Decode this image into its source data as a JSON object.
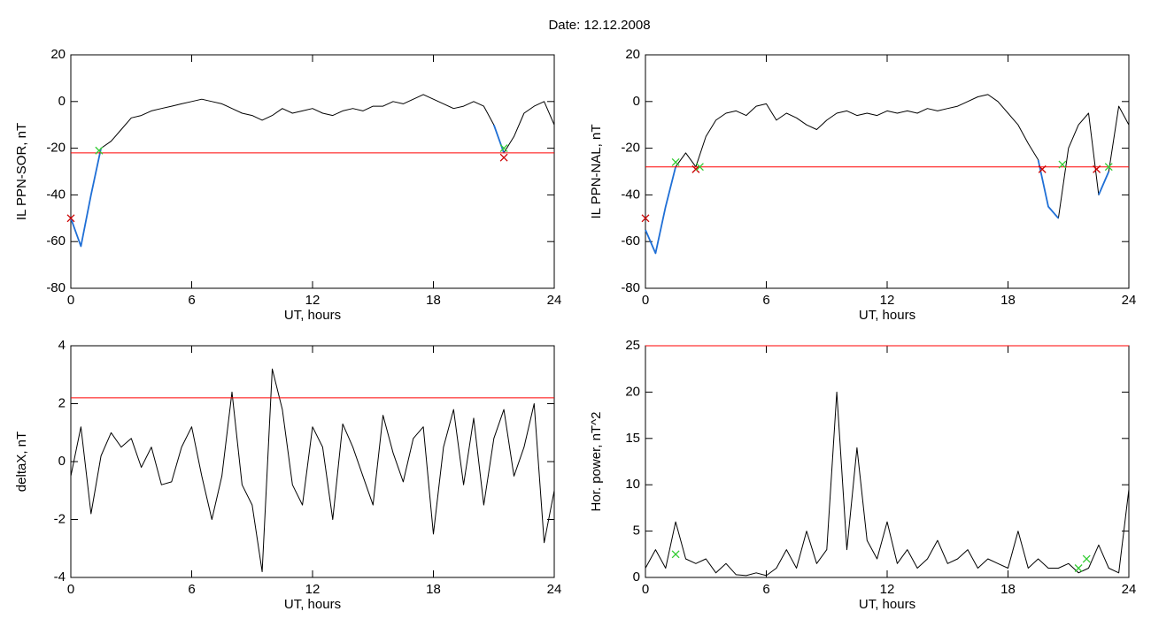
{
  "chart_data": [
    {
      "type": "line",
      "title": "Date:  12.12.2008",
      "xlabel": "UT, hours",
      "ylabel": "IL PPN-SOR, nT",
      "xlim": [
        0,
        24
      ],
      "ylim": [
        -80,
        20
      ],
      "xticks": [
        0,
        6,
        12,
        18,
        24
      ],
      "yticks": [
        -80,
        -60,
        -40,
        -20,
        0,
        20
      ],
      "x": [
        0,
        0.5,
        1,
        1.5,
        2,
        2.5,
        3,
        3.5,
        4,
        4.5,
        5,
        5.5,
        6,
        6.5,
        7,
        7.5,
        8,
        8.5,
        9,
        9.5,
        10,
        10.5,
        11,
        11.5,
        12,
        12.5,
        13,
        13.5,
        14,
        14.5,
        15,
        15.5,
        16,
        16.5,
        17,
        17.5,
        18,
        18.5,
        19,
        19.5,
        20,
        20.5,
        21,
        21.5,
        22,
        22.5,
        23,
        23.5,
        24
      ],
      "series": [
        {
          "color": "#000000",
          "values": [
            -50,
            -62,
            -40,
            -20,
            -17,
            -12,
            -7,
            -6,
            -4,
            -3,
            -2,
            -1,
            0,
            1,
            0,
            -1,
            -3,
            -5,
            -6,
            -8,
            -6,
            -3,
            -5,
            -4,
            -3,
            -5,
            -6,
            -4,
            -3,
            -4,
            -2,
            -2,
            0,
            -1,
            1,
            3,
            1,
            -1,
            -3,
            -2,
            0,
            -2,
            -10,
            -22,
            -15,
            -5,
            -2,
            0,
            -10
          ]
        },
        {
          "color": "#1f6fd6",
          "values": [
            -50,
            -62,
            -40,
            -20,
            null,
            null,
            null,
            null,
            null,
            null,
            null,
            null,
            null,
            null,
            null,
            null,
            null,
            null,
            null,
            null,
            null,
            null,
            null,
            null,
            null,
            null,
            null,
            null,
            null,
            null,
            null,
            null,
            null,
            null,
            null,
            null,
            null,
            null,
            null,
            null,
            null,
            null,
            -10,
            -22,
            null,
            null,
            null,
            null,
            null
          ]
        },
        {
          "color": "#ff0000",
          "x": [
            0,
            24
          ],
          "values": [
            -22,
            -22
          ]
        },
        {
          "type": "scatter",
          "color": "#cc0000",
          "x": [
            0,
            21.5
          ],
          "values": [
            -50,
            -24
          ]
        },
        {
          "type": "scatter",
          "color": "#33cc33",
          "x": [
            1.4,
            21.5
          ],
          "values": [
            -21,
            -20
          ]
        }
      ]
    },
    {
      "type": "line",
      "xlabel": "UT, hours",
      "ylabel": "IL PPN-NAL, nT",
      "xlim": [
        0,
        24
      ],
      "ylim": [
        -80,
        20
      ],
      "xticks": [
        0,
        6,
        12,
        18,
        24
      ],
      "yticks": [
        -80,
        -60,
        -40,
        -20,
        0,
        20
      ],
      "x": [
        0,
        0.5,
        1,
        1.5,
        2,
        2.5,
        3,
        3.5,
        4,
        4.5,
        5,
        5.5,
        6,
        6.5,
        7,
        7.5,
        8,
        8.5,
        9,
        9.5,
        10,
        10.5,
        11,
        11.5,
        12,
        12.5,
        13,
        13.5,
        14,
        14.5,
        15,
        15.5,
        16,
        16.5,
        17,
        17.5,
        18,
        18.5,
        19,
        19.5,
        20,
        20.5,
        21,
        21.5,
        22,
        22.5,
        23,
        23.5,
        24
      ],
      "series": [
        {
          "color": "#000000",
          "values": [
            -55,
            -65,
            -45,
            -28,
            -22,
            -28,
            -15,
            -8,
            -5,
            -4,
            -6,
            -2,
            -1,
            -8,
            -5,
            -7,
            -10,
            -12,
            -8,
            -5,
            -4,
            -6,
            -5,
            -6,
            -4,
            -5,
            -4,
            -5,
            -3,
            -4,
            -3,
            -2,
            0,
            2,
            3,
            0,
            -5,
            -10,
            -18,
            -25,
            -45,
            -50,
            -20,
            -10,
            -5,
            -40,
            -30,
            -2,
            -10
          ]
        },
        {
          "color": "#1f6fd6",
          "values": [
            -55,
            -65,
            -45,
            -28,
            null,
            null,
            null,
            null,
            null,
            null,
            null,
            null,
            null,
            null,
            null,
            null,
            null,
            null,
            null,
            null,
            null,
            null,
            null,
            null,
            null,
            null,
            null,
            null,
            null,
            null,
            null,
            null,
            null,
            null,
            null,
            null,
            null,
            null,
            null,
            -25,
            -45,
            -50,
            null,
            null,
            null,
            -40,
            -30,
            null,
            null
          ]
        },
        {
          "color": "#ff0000",
          "x": [
            0,
            24
          ],
          "values": [
            -28,
            -28
          ]
        },
        {
          "type": "scatter",
          "color": "#cc0000",
          "x": [
            0,
            2.5,
            19.7,
            22.4
          ],
          "values": [
            -50,
            -29,
            -29,
            -29
          ]
        },
        {
          "type": "scatter",
          "color": "#33cc33",
          "x": [
            1.5,
            2.7,
            20.7,
            23
          ],
          "values": [
            -26,
            -28,
            -27,
            -28
          ]
        }
      ]
    },
    {
      "type": "line",
      "xlabel": "UT, hours",
      "ylabel": "deltaX, nT",
      "xlim": [
        0,
        24
      ],
      "ylim": [
        -4,
        4
      ],
      "xticks": [
        0,
        6,
        12,
        18,
        24
      ],
      "yticks": [
        -4,
        -2,
        0,
        2,
        4
      ],
      "x": [
        0,
        0.5,
        1,
        1.5,
        2,
        2.5,
        3,
        3.5,
        4,
        4.5,
        5,
        5.5,
        6,
        6.5,
        7,
        7.5,
        8,
        8.5,
        9,
        9.5,
        10,
        10.5,
        11,
        11.5,
        12,
        12.5,
        13,
        13.5,
        14,
        14.5,
        15,
        15.5,
        16,
        16.5,
        17,
        17.5,
        18,
        18.5,
        19,
        19.5,
        20,
        20.5,
        21,
        21.5,
        22,
        22.5,
        23,
        23.5,
        24
      ],
      "series": [
        {
          "color": "#000000",
          "values": [
            -0.5,
            1.2,
            -1.8,
            0.2,
            1.0,
            0.5,
            0.8,
            -0.2,
            0.5,
            -0.8,
            -0.7,
            0.5,
            1.2,
            -0.5,
            -2.0,
            -0.5,
            2.4,
            -0.8,
            -1.5,
            -3.8,
            3.2,
            1.8,
            -0.8,
            -1.5,
            1.2,
            0.5,
            -2.0,
            1.3,
            0.5,
            -0.5,
            -1.5,
            1.6,
            0.3,
            -0.7,
            0.8,
            1.2,
            -2.5,
            0.5,
            1.8,
            -0.8,
            1.5,
            -1.5,
            0.8,
            1.8,
            -0.5,
            0.5,
            2.0,
            -2.8,
            -1.0
          ]
        },
        {
          "color": "#ff0000",
          "x": [
            0,
            24
          ],
          "values": [
            2.2,
            2.2
          ]
        }
      ]
    },
    {
      "type": "line",
      "xlabel": "UT, hours",
      "ylabel": "Hor. power, nT^2",
      "xlim": [
        0,
        24
      ],
      "ylim": [
        0,
        25
      ],
      "xticks": [
        0,
        6,
        12,
        18,
        24
      ],
      "yticks": [
        0,
        5,
        10,
        15,
        20,
        25
      ],
      "x": [
        0,
        0.5,
        1,
        1.5,
        2,
        2.5,
        3,
        3.5,
        4,
        4.5,
        5,
        5.5,
        6,
        6.5,
        7,
        7.5,
        8,
        8.5,
        9,
        9.5,
        10,
        10.5,
        11,
        11.5,
        12,
        12.5,
        13,
        13.5,
        14,
        14.5,
        15,
        15.5,
        16,
        16.5,
        17,
        17.5,
        18,
        18.5,
        19,
        19.5,
        20,
        20.5,
        21,
        21.5,
        22,
        22.5,
        23,
        23.5,
        24
      ],
      "series": [
        {
          "color": "#000000",
          "values": [
            1,
            3,
            1,
            6,
            2,
            1.5,
            2,
            0.5,
            1.5,
            0.3,
            0.2,
            0.5,
            0.2,
            1,
            3,
            1,
            5,
            1.5,
            3,
            20,
            3,
            14,
            4,
            2,
            6,
            1.5,
            3,
            1,
            2,
            4,
            1.5,
            2,
            3,
            1,
            2,
            1.5,
            1,
            5,
            1,
            2,
            1,
            1,
            1.5,
            0.5,
            1,
            3.5,
            1,
            0.5,
            9.5
          ]
        },
        {
          "color": "#ff0000",
          "x": [
            0,
            24
          ],
          "values": [
            25,
            25
          ]
        },
        {
          "type": "scatter",
          "color": "#33cc33",
          "x": [
            1.5,
            21.5,
            21.9
          ],
          "values": [
            2.5,
            1,
            2
          ]
        }
      ]
    }
  ]
}
